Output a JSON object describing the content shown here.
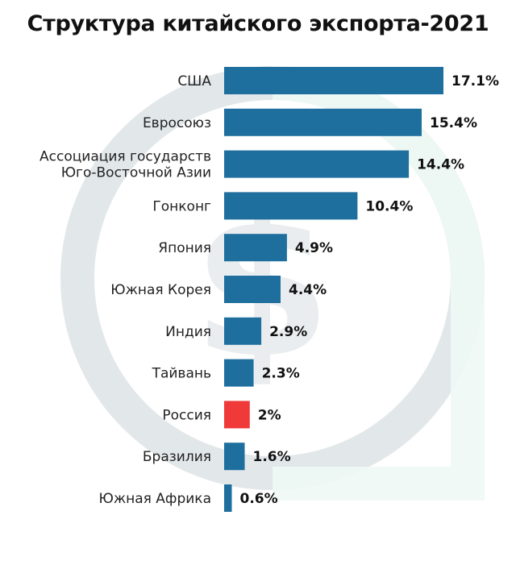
{
  "title": "Структура китайского экспорта-2021",
  "chart_data": {
    "type": "bar",
    "orientation": "horizontal",
    "title": "Структура китайского экспорта-2021",
    "xlabel": "",
    "ylabel": "",
    "grid": false,
    "legend": "none",
    "unit": "%",
    "xlim": [
      0,
      17.1
    ],
    "categories": [
      [
        "США"
      ],
      [
        "Евросоюз"
      ],
      [
        "Ассоциация государств",
        "Юго-Восточной Азии"
      ],
      [
        "Гонконг"
      ],
      [
        "Япония"
      ],
      [
        "Южная Корея"
      ],
      [
        "Индия"
      ],
      [
        "Тайвань"
      ],
      [
        "Россия"
      ],
      [
        "Бразилия"
      ],
      [
        "Южная Африка"
      ]
    ],
    "values": [
      17.1,
      15.4,
      14.4,
      10.4,
      4.9,
      4.4,
      2.9,
      2.3,
      2,
      1.6,
      0.6
    ],
    "labels": [
      "17.1%",
      "15.4%",
      "14.4%",
      "10.4%",
      "4.9%",
      "4.4%",
      "2.9%",
      "2.3%",
      "2%",
      "1.6%",
      "0.6%"
    ],
    "highlight": "Россия",
    "colors": {
      "bar": "#1f6f9e",
      "highlight": "#f03a3a",
      "highlight_text": "#e03030",
      "text": "#222222"
    }
  }
}
